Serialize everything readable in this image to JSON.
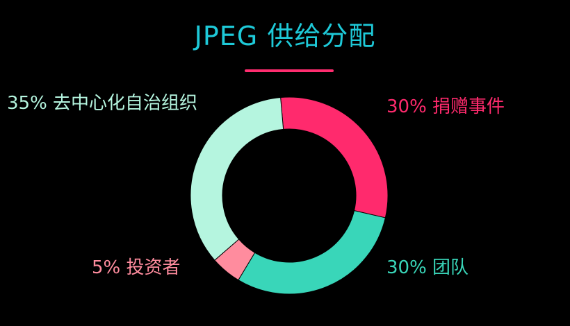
{
  "colors": {
    "background": "#000000",
    "title": "#1ec9d8",
    "underline": "#ff2d6f"
  },
  "chart_data": {
    "type": "pie",
    "variant": "donut",
    "title": "JPEG 供给分配",
    "slices": [
      {
        "label": "捐赠事件",
        "value": 30,
        "display": "30% 捐赠事件",
        "color": "#ff2a6d"
      },
      {
        "label": "团队",
        "value": 30,
        "display": "30% 团队",
        "color": "#39d6b9"
      },
      {
        "label": "投资者",
        "value": 5,
        "display": "5% 投资者",
        "color": "#ff8c9e"
      },
      {
        "label": "去中心化自治组织",
        "value": 35,
        "display": "35% 去中心化自治组织",
        "color": "#b5f5df"
      }
    ]
  }
}
